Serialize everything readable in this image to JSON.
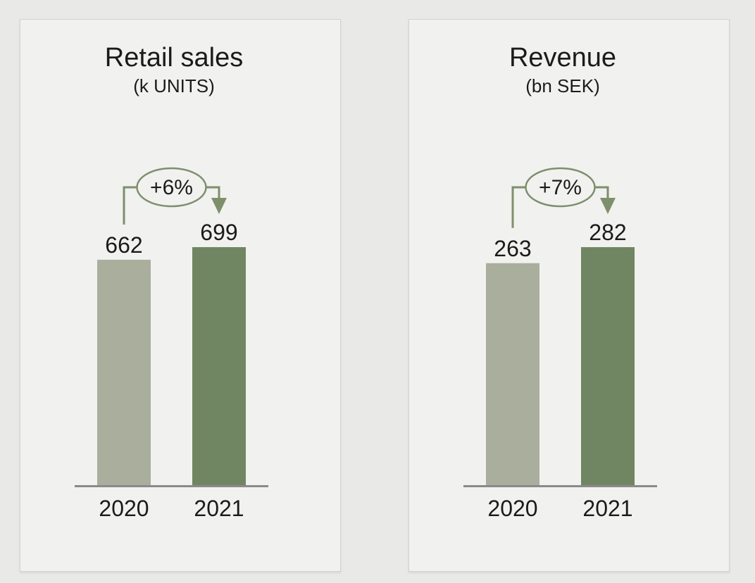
{
  "page": {
    "background": "#e9e9e8",
    "panel_background": "#f1f1f0",
    "panel_border": "#d2d2d2"
  },
  "colors": {
    "bar_2020": "#a9ae9d",
    "bar_2021": "#708562",
    "accent_line": "#7d8f6b",
    "axis_line": "#8a8a8a",
    "text": "#1b1b1b"
  },
  "chart_data": [
    {
      "type": "bar",
      "title": "Retail sales",
      "subtitle": "(k UNITS)",
      "categories": [
        "2020",
        "2021"
      ],
      "values": [
        662,
        699
      ],
      "value_labels": [
        "662",
        "699"
      ],
      "change_label": "+6%",
      "xlabel": "",
      "ylabel": "",
      "y_axis": "hidden",
      "grid": false,
      "legend": "none",
      "annotation": "bracket arrow from 2020 bar to 2021 bar through ellipse badge"
    },
    {
      "type": "bar",
      "title": "Revenue",
      "subtitle": "(bn SEK)",
      "categories": [
        "2020",
        "2021"
      ],
      "values": [
        263,
        282
      ],
      "value_labels": [
        "263",
        "282"
      ],
      "change_label": "+7%",
      "xlabel": "",
      "ylabel": "",
      "y_axis": "hidden",
      "grid": false,
      "legend": "none",
      "annotation": "bracket arrow from 2020 bar to 2021 bar through ellipse badge"
    }
  ]
}
